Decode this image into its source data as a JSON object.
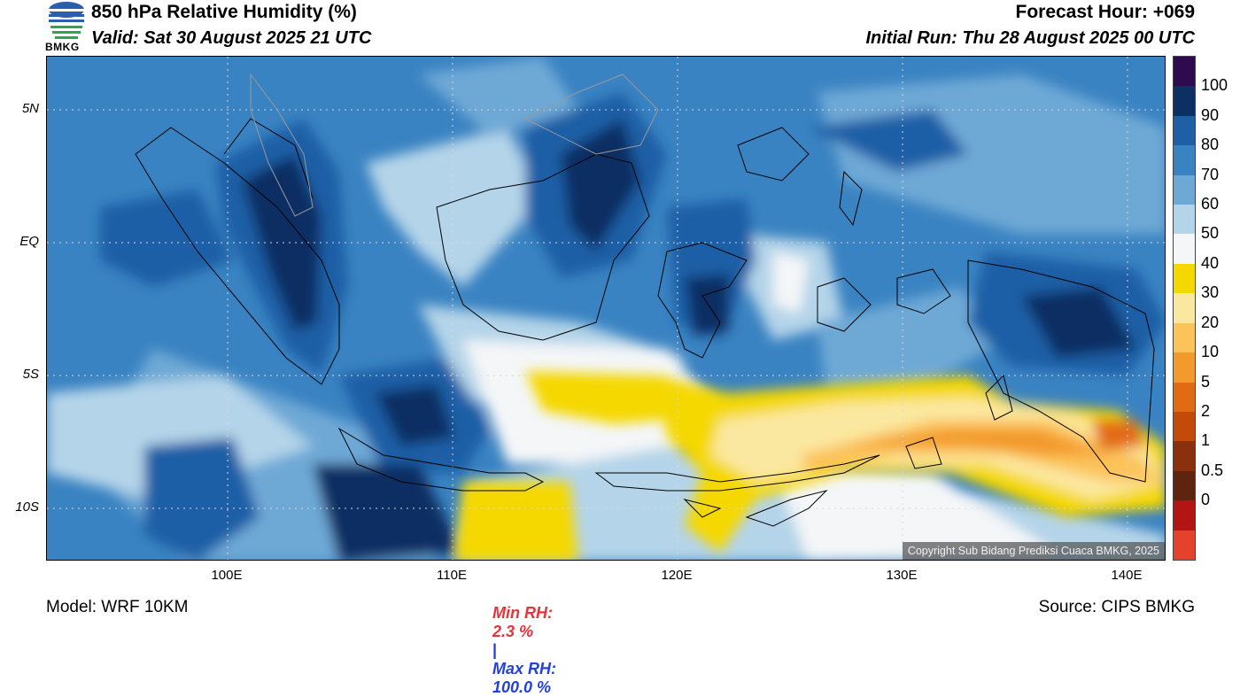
{
  "header": {
    "title": "850 hPa Relative Humidity (%)",
    "valid": "Valid: Sat 30 August 2025 21 UTC",
    "forecast_hour": "Forecast Hour: +069",
    "initial_run": "Initial Run: Thu 28 August 2025 00 UTC",
    "logo_text": "BMKG"
  },
  "map": {
    "y_ticks": [
      "5N",
      "EQ",
      "5S",
      "10S"
    ],
    "x_ticks": [
      "100E",
      "110E",
      "120E",
      "130E",
      "140E"
    ],
    "copyright": "Copyright Sub Bidang Prediksi Cuaca BMKG, 2025"
  },
  "colorbar": {
    "labels": [
      "100",
      "90",
      "80",
      "70",
      "60",
      "50",
      "40",
      "30",
      "20",
      "10",
      "5",
      "2",
      "1",
      "0.5",
      "0"
    ],
    "colors": [
      "#2e0a4e",
      "#0e2f63",
      "#1f5fa6",
      "#3a83c2",
      "#6ea9d6",
      "#b4d4e9",
      "#f4f6f8",
      "#f5d800",
      "#fbe8a0",
      "#fcc35a",
      "#f39a2c",
      "#e26a12",
      "#c44a0a",
      "#8a300c",
      "#5e2410",
      "#b31515",
      "#e4422c"
    ]
  },
  "stats": {
    "min_label": "Min RH:",
    "min_value": "2.3 %",
    "separator": "|",
    "max_label": "Max RH:",
    "max_value": "100.0 %",
    "min_color": "#e8333a",
    "max_color": "#2142d8"
  },
  "footer": {
    "model": "Model: WRF 10KM",
    "source": "Source: CIPS BMKG"
  }
}
